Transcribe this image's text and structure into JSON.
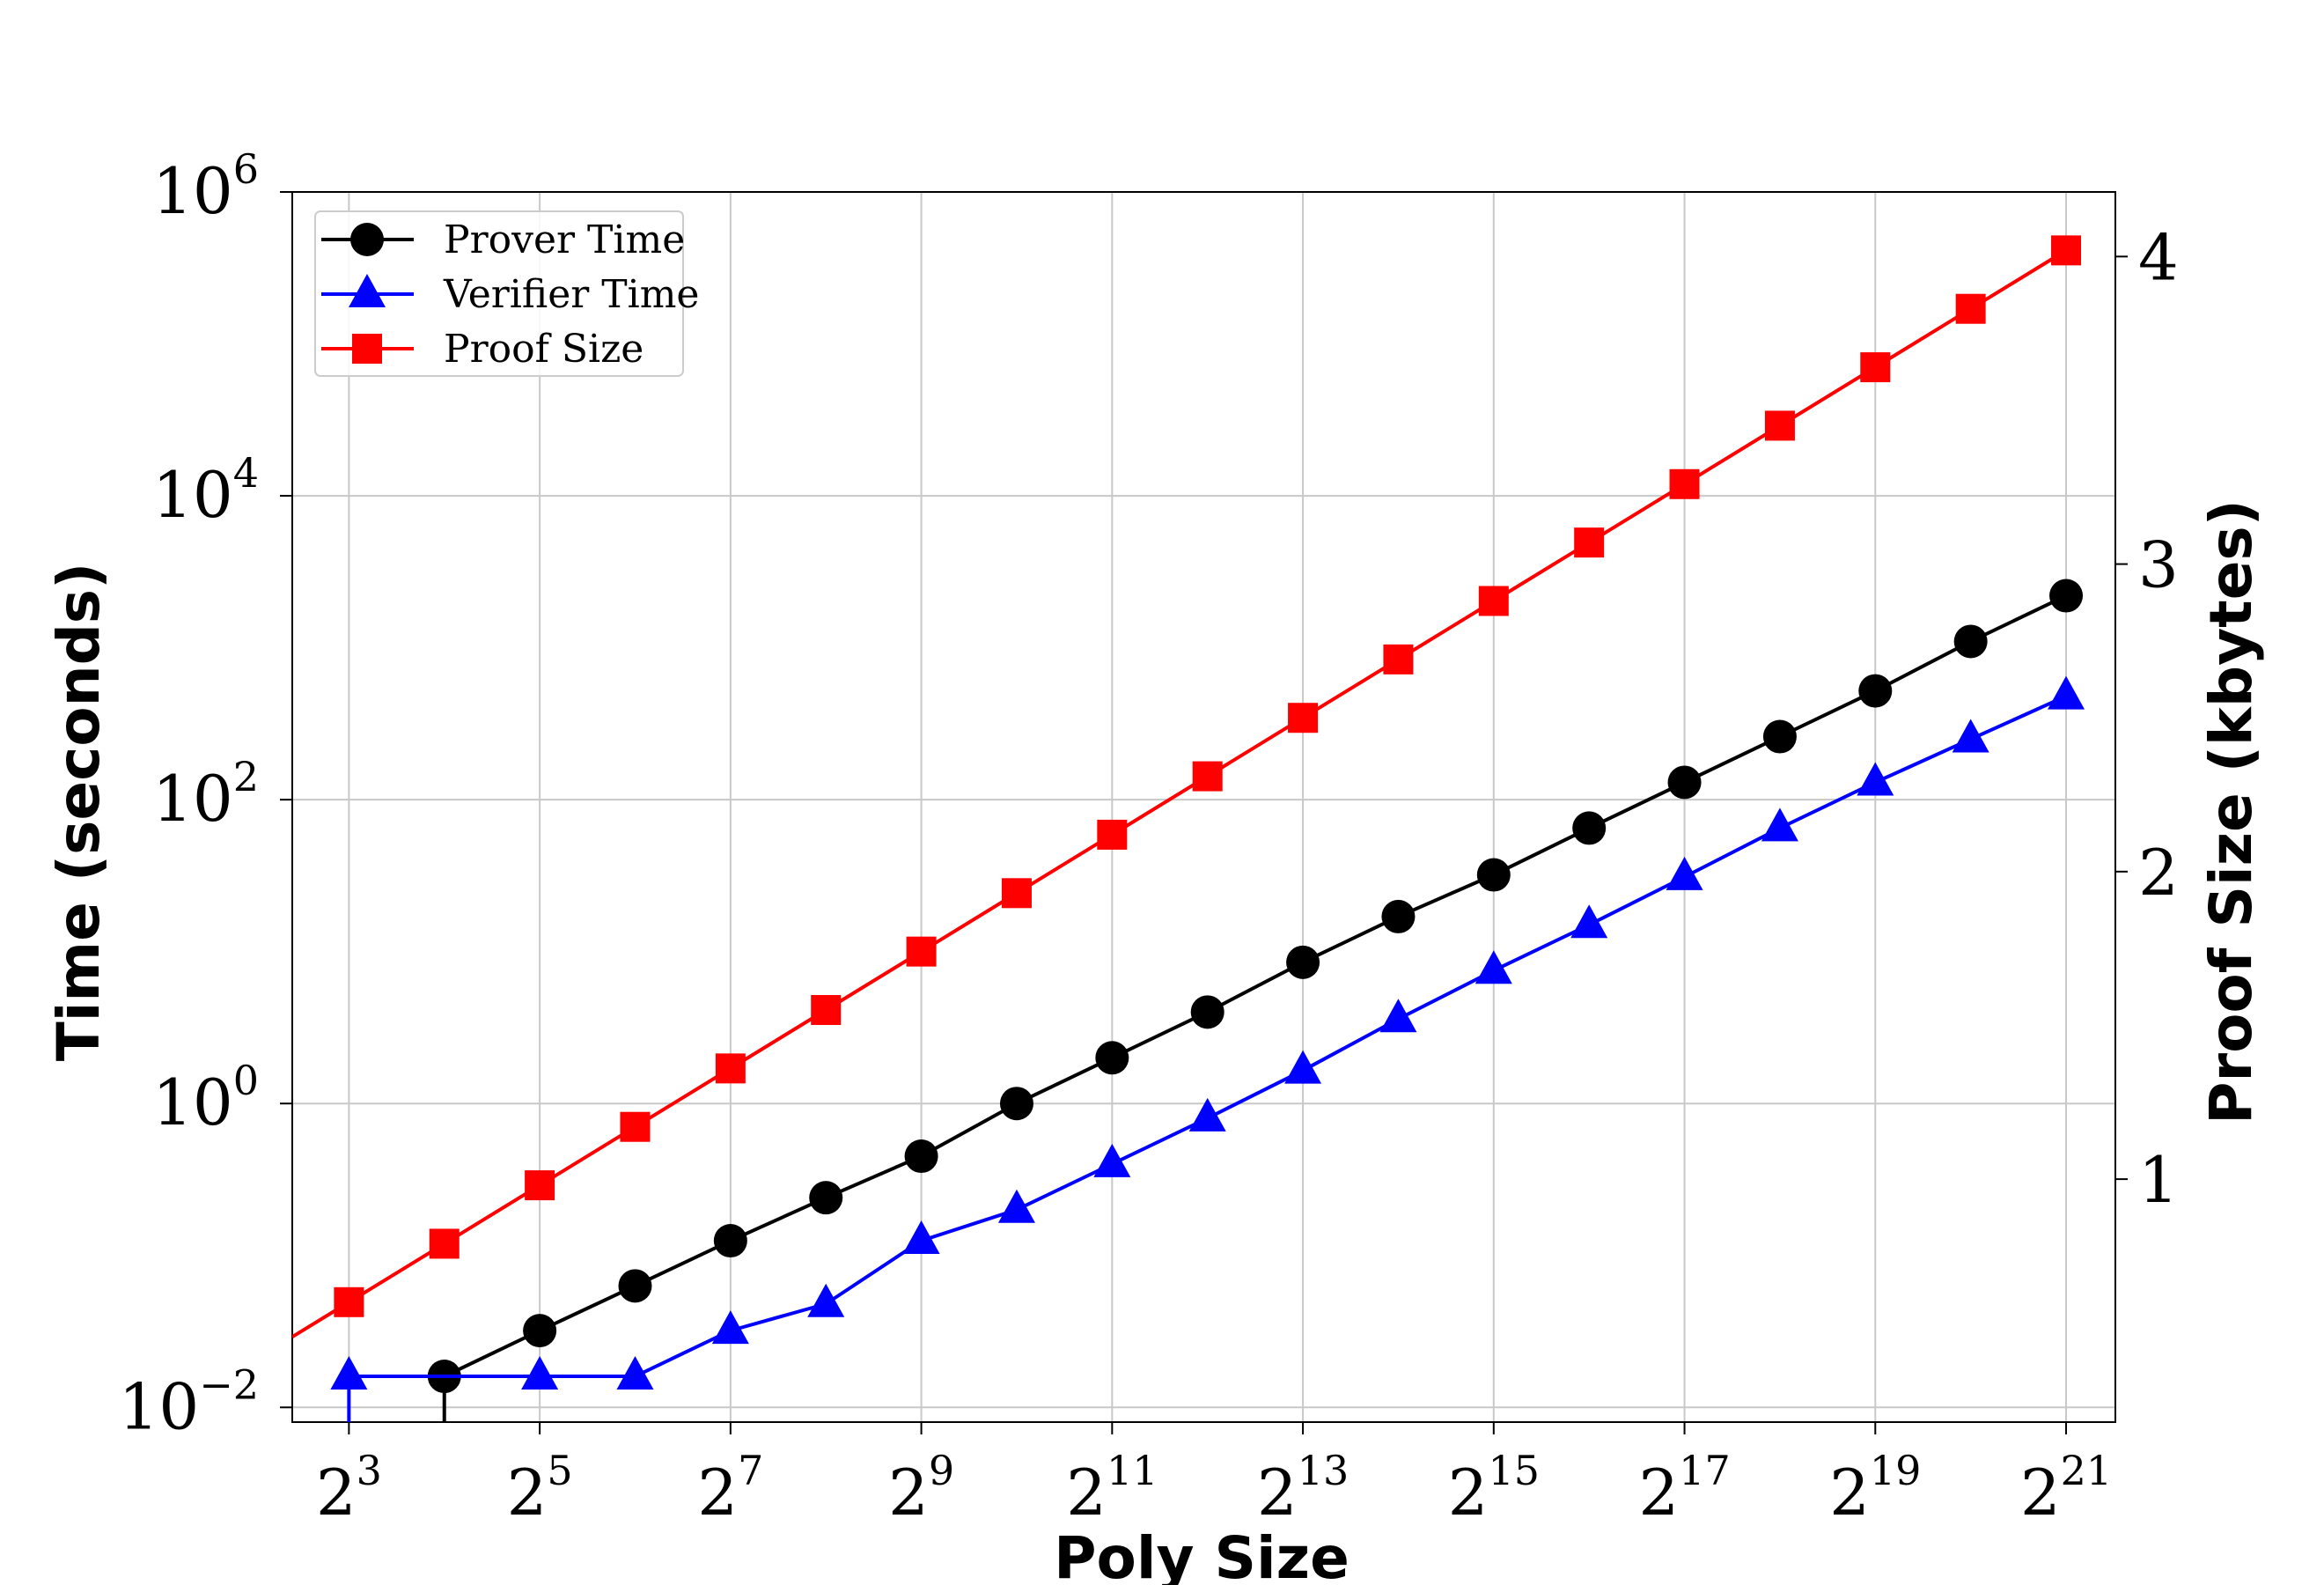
{
  "chart_data": {
    "type": "line",
    "xlabel": "Poly Size",
    "ylabel": "Time (seconds)",
    "y2label": "Proof Size (kbytes)",
    "x_scale": "log2",
    "y_scale": "log10",
    "xlim": [
      5.3,
      3000000
    ],
    "ylim": [
      0.008,
      1000000
    ],
    "y2lim": [
      0.21,
      4.21
    ],
    "x_ticks": [
      8,
      32,
      128,
      512,
      2048,
      8192,
      32768,
      131072,
      524288,
      2097152
    ],
    "x_tick_labels": [
      {
        "base": "2",
        "exp": "3"
      },
      {
        "base": "2",
        "exp": "5"
      },
      {
        "base": "2",
        "exp": "7"
      },
      {
        "base": "2",
        "exp": "9"
      },
      {
        "base": "2",
        "exp": "11"
      },
      {
        "base": "2",
        "exp": "13"
      },
      {
        "base": "2",
        "exp": "15"
      },
      {
        "base": "2",
        "exp": "17"
      },
      {
        "base": "2",
        "exp": "19"
      },
      {
        "base": "2",
        "exp": "21"
      }
    ],
    "y_ticks": [
      0.01,
      1,
      100,
      10000,
      1000000
    ],
    "y_tick_labels": [
      {
        "base": "10",
        "exp": "−2"
      },
      {
        "base": "10",
        "exp": "0"
      },
      {
        "base": "10",
        "exp": "2"
      },
      {
        "base": "10",
        "exp": "4"
      },
      {
        "base": "10",
        "exp": "6"
      }
    ],
    "y2_ticks": [
      1,
      2,
      3,
      4
    ],
    "y2_tick_labels": [
      "1",
      "2",
      "3",
      "4"
    ],
    "grid": true,
    "legend_position": "top-left",
    "x": [
      8,
      16,
      32,
      64,
      128,
      256,
      512,
      1024,
      2048,
      4096,
      8192,
      16384,
      32768,
      65536,
      131072,
      262144,
      524288,
      1048576,
      2097152
    ],
    "series": [
      {
        "name": "Prover Time",
        "axis": "left",
        "color": "#000000",
        "marker": "circle",
        "values": [
          null,
          0.016,
          0.032,
          0.063,
          0.125,
          0.24,
          0.45,
          1.0,
          2.0,
          4.0,
          8.5,
          17,
          32,
          65,
          130,
          260,
          520,
          1100,
          2200
        ]
      },
      {
        "name": "Verifier Time",
        "axis": "left",
        "color": "#0000ff",
        "marker": "triangle",
        "values": [
          0.016,
          null,
          0.016,
          0.016,
          0.032,
          0.048,
          0.125,
          0.2,
          0.4,
          0.8,
          1.65,
          3.6,
          7.5,
          15,
          31,
          65,
          130,
          250,
          480
        ]
      },
      {
        "name": "Proof Size",
        "axis": "right",
        "color": "#ff0000",
        "marker": "square",
        "values": [
          0.6,
          0.79,
          0.98,
          1.17,
          1.36,
          1.55,
          1.74,
          1.93,
          2.12,
          2.31,
          2.5,
          2.69,
          2.88,
          3.07,
          3.26,
          3.45,
          3.64,
          3.83,
          4.02
        ]
      }
    ]
  }
}
